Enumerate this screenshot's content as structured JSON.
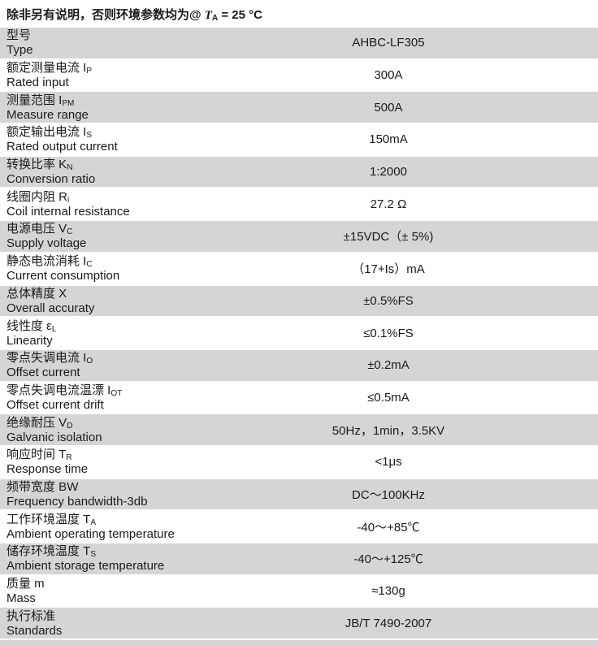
{
  "caption": {
    "prefix": "除非另有说明，否则环境参数均为@ ",
    "t_symbol": "T",
    "t_subscript": "A",
    "suffix": " = 25 °C"
  },
  "colors": {
    "row_shaded": "#d5d5d5",
    "row_plain": "#ffffff",
    "text": "#1a1a1a"
  },
  "table": {
    "rows": [
      {
        "zh": "型号",
        "sym": "",
        "sub": "",
        "en": "Type",
        "value": "AHBC-LF305",
        "shaded": true
      },
      {
        "zh": "额定测量电流",
        "sym": "I",
        "sub": "P",
        "en": "Rated input",
        "value": "300A",
        "shaded": false
      },
      {
        "zh": "测量范围",
        "sym": "I",
        "sub": "PM",
        "en": "Measure range",
        "value": "500A",
        "shaded": true
      },
      {
        "zh": "额定输出电流",
        "sym": "I",
        "sub": "S",
        "en": "Rated output current",
        "value": "150mA",
        "shaded": false
      },
      {
        "zh": "转换比率",
        "sym": "K",
        "sub": "N",
        "en": "Conversion ratio",
        "value": "1:2000",
        "shaded": true
      },
      {
        "zh": "线圈内阻",
        "sym": "R",
        "sub": "i",
        "en": "Coil internal resistance",
        "value": "27.2 Ω",
        "shaded": false
      },
      {
        "zh": "电源电压",
        "sym": "V",
        "sub": "C",
        "en": "Supply voltage",
        "value": "±15VDC（± 5%)",
        "shaded": true
      },
      {
        "zh": "静态电流消耗",
        "sym": "I",
        "sub": "C",
        "en": "Current consumption",
        "value": "（17+Is）mA",
        "shaded": false
      },
      {
        "zh": "总体精度",
        "sym": "X",
        "sub": "",
        "en": "Overall accuraty",
        "value": "±0.5%FS",
        "shaded": true
      },
      {
        "zh": "线性度",
        "sym": "ε",
        "sub": "L",
        "en": "Linearity",
        "value": "≤0.1%FS",
        "shaded": false
      },
      {
        "zh": "零点失调电流",
        "sym": "I",
        "sub": "O",
        "en": "Offset current",
        "value": "±0.2mA",
        "shaded": true
      },
      {
        "zh": "零点失调电流温漂",
        "sym": "I",
        "sub": "OT",
        "en": "Offset current drift",
        "value": "≤0.5mA",
        "shaded": false
      },
      {
        "zh": "绝缘耐压",
        "sym": "V",
        "sub": "D",
        "en": "Galvanic isolation",
        "value": "50Hz，1min，3.5KV",
        "shaded": true
      },
      {
        "zh": "响应时间",
        "sym": "T",
        "sub": "R",
        "en": "Response time",
        "value": "<1μs",
        "shaded": false
      },
      {
        "zh": "频带宽度",
        "sym": "BW",
        "sub": "",
        "en": "Frequency bandwidth-3db",
        "value": "DC～100KHz",
        "shaded": true
      },
      {
        "zh": "工作环境温度",
        "sym": "T",
        "sub": "A",
        "en": "Ambient operating temperature",
        "value": "-40～+85℃",
        "shaded": false
      },
      {
        "zh": "储存环境温度",
        "sym": "T",
        "sub": "S",
        "en": "Ambient storage temperature",
        "value": "-40～+125℃",
        "shaded": true
      },
      {
        "zh": "质量",
        "sym": "m",
        "sub": "",
        "en": "Mass",
        "value": "≈130g",
        "shaded": false
      },
      {
        "zh": "执行标准",
        "sym": "",
        "sub": "",
        "en": "Standards",
        "value": "JB/T 7490-2007",
        "shaded": true
      }
    ]
  }
}
